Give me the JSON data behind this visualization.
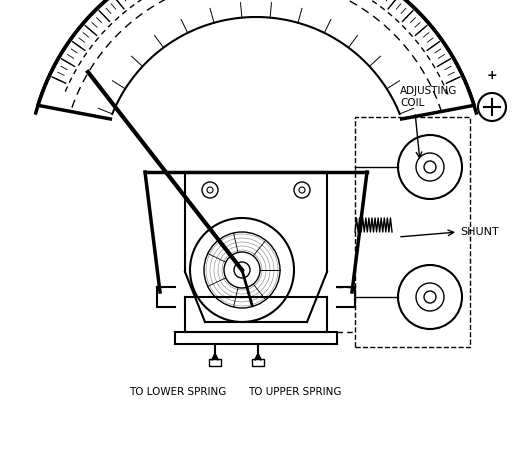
{
  "bg_color": "#ffffff",
  "line_color": "#000000",
  "title": "",
  "fig_width": 5.12,
  "fig_height": 4.62,
  "dpi": 100,
  "labels": {
    "adjusting_coil": "ADJUSTING\nCOIL",
    "shunt": "SHUNT",
    "to_lower_spring": "TO LOWER SPRING",
    "to_upper_spring": "TO UPPER SPRING",
    "plus": "+"
  }
}
